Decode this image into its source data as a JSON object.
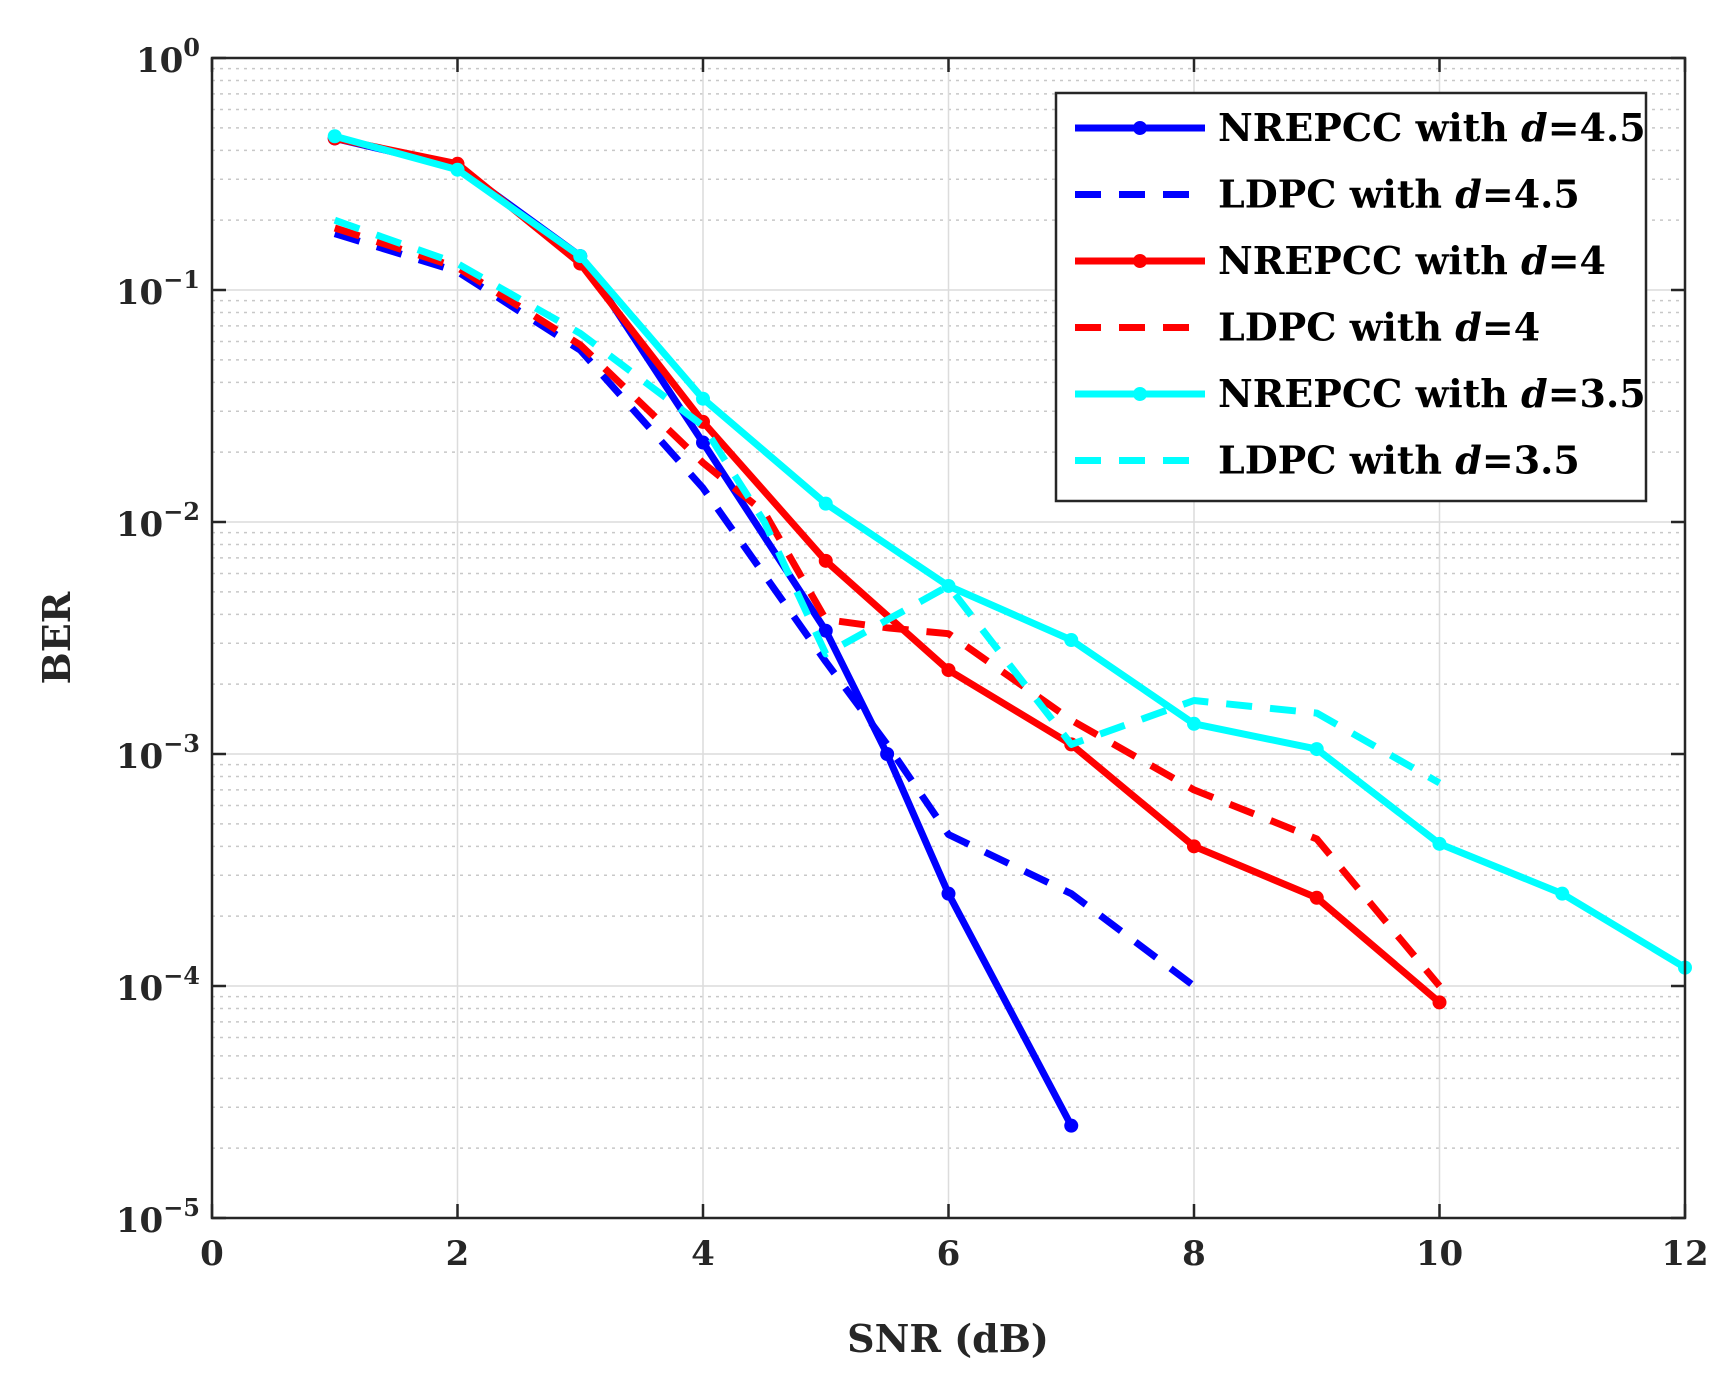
{
  "chart_data": {
    "type": "line",
    "title": "",
    "xlabel": "SNR (dB)",
    "ylabel": "BER",
    "xlim": [
      0,
      12
    ],
    "ylim": [
      1e-05,
      1
    ],
    "yscale": "log",
    "grid": true,
    "legend_position": "top-right",
    "xticks": [
      "0",
      "2",
      "4",
      "6",
      "8",
      "10",
      "12"
    ],
    "yticks": [
      {
        "base": "10",
        "exp": "0"
      },
      {
        "base": "10",
        "exp": "−1"
      },
      {
        "base": "10",
        "exp": "−2"
      },
      {
        "base": "10",
        "exp": "−3"
      },
      {
        "base": "10",
        "exp": "−4"
      },
      {
        "base": "10",
        "exp": "−5"
      }
    ],
    "series": [
      {
        "prefix": "NREPCC with ",
        "var": "d",
        "value": "=4.5",
        "color": "#0000ff",
        "style": "solid",
        "markers": true,
        "x": [
          1,
          2,
          3,
          4,
          5,
          5.5,
          6,
          7
        ],
        "y": [
          0.45,
          0.34,
          0.14,
          0.022,
          0.0034,
          0.001,
          0.00025,
          2.5e-05
        ]
      },
      {
        "prefix": "LDPC with ",
        "var": "d",
        "value": "=4.5",
        "color": "#0000ff",
        "style": "dashed",
        "markers": false,
        "x": [
          1,
          2,
          3,
          4,
          5,
          5.5,
          6,
          7,
          8
        ],
        "y": [
          0.175,
          0.12,
          0.055,
          0.014,
          0.0025,
          0.0011,
          0.00045,
          0.00025,
          0.0001
        ]
      },
      {
        "prefix": "NREPCC with ",
        "var": "d",
        "value": "=4",
        "color": "#ff0000",
        "style": "solid",
        "markers": true,
        "x": [
          1,
          2,
          3,
          4,
          5,
          6,
          7,
          8,
          9,
          10
        ],
        "y": [
          0.45,
          0.35,
          0.13,
          0.027,
          0.0068,
          0.0023,
          0.0011,
          0.0004,
          0.00024,
          8.5e-05
        ]
      },
      {
        "prefix": "LDPC with ",
        "var": "d",
        "value": "=4",
        "color": "#ff0000",
        "style": "dashed",
        "markers": false,
        "x": [
          1,
          2,
          3,
          4,
          4.5,
          5,
          5.5,
          6,
          7,
          8,
          9,
          10
        ],
        "y": [
          0.185,
          0.125,
          0.058,
          0.018,
          0.011,
          0.0038,
          0.0035,
          0.0033,
          0.0014,
          0.0007,
          0.00043,
          0.0001
        ]
      },
      {
        "prefix": "NREPCC with ",
        "var": "d",
        "value": "=3.5",
        "color": "#00ffff",
        "style": "solid",
        "markers": true,
        "x": [
          1,
          2,
          3,
          4,
          5,
          6,
          7,
          8,
          9,
          10,
          11,
          12
        ],
        "y": [
          0.46,
          0.33,
          0.14,
          0.034,
          0.012,
          0.0053,
          0.0031,
          0.00135,
          0.00105,
          0.00041,
          0.00025,
          0.00012
        ]
      },
      {
        "prefix": "LDPC with ",
        "var": "d",
        "value": "=3.5",
        "color": "#00ffff",
        "style": "dashed",
        "markers": false,
        "x": [
          1,
          2,
          3,
          4,
          4.5,
          5,
          6,
          7,
          8,
          9,
          10
        ],
        "y": [
          0.2,
          0.13,
          0.065,
          0.026,
          0.01,
          0.0027,
          0.0053,
          0.0011,
          0.0017,
          0.0015,
          0.00075
        ]
      }
    ]
  }
}
